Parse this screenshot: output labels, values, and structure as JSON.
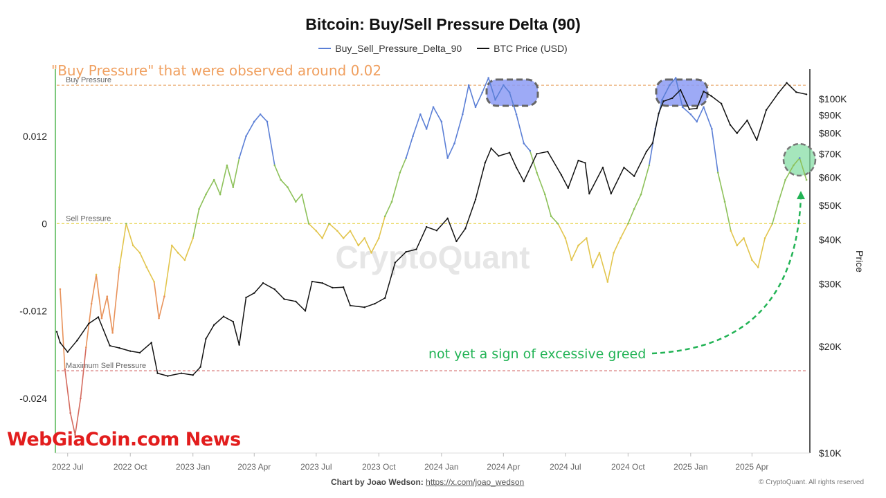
{
  "chart_data": {
    "type": "line",
    "title": "Bitcoin: Buy/Sell Pressure Delta (90)",
    "legend": [
      {
        "name": "Buy_Sell_Pressure_Delta_90",
        "color": "#5b7fd6"
      },
      {
        "name": "BTC Price (USD)",
        "color": "#111111"
      }
    ],
    "x_ticks": [
      "2022 Jul",
      "2022 Oct",
      "2023 Jan",
      "2023 Apr",
      "2023 Jul",
      "2023 Oct",
      "2024 Jan",
      "2024 Apr",
      "2024 Jul",
      "2024 Oct",
      "2025 Jan",
      "2025 Apr"
    ],
    "x_range": [
      "2022-06-15",
      "2025-06-25"
    ],
    "y_left": {
      "ticks": [
        "0.012",
        "0",
        "-0.012",
        "-0.024"
      ],
      "tick_values": [
        0.012,
        0,
        -0.012,
        -0.024
      ],
      "ylim": [
        -0.0315,
        0.0212
      ]
    },
    "y_right": {
      "label": "Price",
      "scale": "log",
      "ticks": [
        "$100K",
        "$90K",
        "$80K",
        "$70K",
        "$60K",
        "$50K",
        "$40K",
        "$30K",
        "$20K",
        "$10K"
      ],
      "tick_values": [
        100000,
        90000,
        80000,
        70000,
        60000,
        50000,
        40000,
        30000,
        20000,
        10000
      ]
    },
    "reference_lines": [
      {
        "label": "Buy Pressure",
        "value": 0.019,
        "color": "#e8a464"
      },
      {
        "label": "Sell Pressure",
        "value": 0.0,
        "color": "#e8d24a"
      },
      {
        "label": "Maximum Sell Pressure",
        "value": -0.0202,
        "color": "#d98080"
      }
    ],
    "series": [
      {
        "name": "Buy_Sell_Pressure_Delta_90",
        "axis": "left",
        "points": [
          [
            "2022-06-20",
            -0.009
          ],
          [
            "2022-06-27",
            -0.02
          ],
          [
            "2022-07-05",
            -0.026
          ],
          [
            "2022-07-12",
            -0.029
          ],
          [
            "2022-07-20",
            -0.024
          ],
          [
            "2022-07-28",
            -0.017
          ],
          [
            "2022-08-05",
            -0.011
          ],
          [
            "2022-08-12",
            -0.007
          ],
          [
            "2022-08-20",
            -0.013
          ],
          [
            "2022-08-28",
            -0.01
          ],
          [
            "2022-09-05",
            -0.015
          ],
          [
            "2022-09-15",
            -0.006
          ],
          [
            "2022-09-25",
            0.0
          ],
          [
            "2022-10-05",
            -0.003
          ],
          [
            "2022-10-15",
            -0.004
          ],
          [
            "2022-10-25",
            -0.006
          ],
          [
            "2022-11-05",
            -0.008
          ],
          [
            "2022-11-12",
            -0.013
          ],
          [
            "2022-11-20",
            -0.01
          ],
          [
            "2022-12-01",
            -0.003
          ],
          [
            "2022-12-10",
            -0.004
          ],
          [
            "2022-12-20",
            -0.005
          ],
          [
            "2023-01-01",
            -0.002
          ],
          [
            "2023-01-10",
            0.002
          ],
          [
            "2023-01-20",
            0.004
          ],
          [
            "2023-02-01",
            0.006
          ],
          [
            "2023-02-10",
            0.004
          ],
          [
            "2023-02-20",
            0.008
          ],
          [
            "2023-03-01",
            0.005
          ],
          [
            "2023-03-10",
            0.009
          ],
          [
            "2023-03-20",
            0.012
          ],
          [
            "2023-04-01",
            0.014
          ],
          [
            "2023-04-10",
            0.015
          ],
          [
            "2023-04-20",
            0.014
          ],
          [
            "2023-05-01",
            0.008
          ],
          [
            "2023-05-10",
            0.006
          ],
          [
            "2023-05-20",
            0.005
          ],
          [
            "2023-06-01",
            0.003
          ],
          [
            "2023-06-10",
            0.004
          ],
          [
            "2023-06-20",
            0.0
          ],
          [
            "2023-07-01",
            -0.001
          ],
          [
            "2023-07-10",
            -0.002
          ],
          [
            "2023-07-20",
            0.0
          ],
          [
            "2023-08-01",
            -0.001
          ],
          [
            "2023-08-10",
            -0.002
          ],
          [
            "2023-08-20",
            -0.001
          ],
          [
            "2023-09-01",
            -0.003
          ],
          [
            "2023-09-10",
            -0.002
          ],
          [
            "2023-09-20",
            -0.004
          ],
          [
            "2023-10-01",
            -0.002
          ],
          [
            "2023-10-10",
            0.001
          ],
          [
            "2023-10-20",
            0.003
          ],
          [
            "2023-11-01",
            0.007
          ],
          [
            "2023-11-10",
            0.009
          ],
          [
            "2023-11-20",
            0.012
          ],
          [
            "2023-12-01",
            0.015
          ],
          [
            "2023-12-10",
            0.013
          ],
          [
            "2023-12-20",
            0.016
          ],
          [
            "2024-01-01",
            0.014
          ],
          [
            "2024-01-10",
            0.009
          ],
          [
            "2024-01-20",
            0.011
          ],
          [
            "2024-02-01",
            0.015
          ],
          [
            "2024-02-10",
            0.019
          ],
          [
            "2024-02-20",
            0.016
          ],
          [
            "2024-03-01",
            0.018
          ],
          [
            "2024-03-10",
            0.02
          ],
          [
            "2024-03-20",
            0.017
          ],
          [
            "2024-04-01",
            0.019
          ],
          [
            "2024-04-10",
            0.018
          ],
          [
            "2024-04-20",
            0.015
          ],
          [
            "2024-05-01",
            0.011
          ],
          [
            "2024-05-10",
            0.01
          ],
          [
            "2024-05-20",
            0.007
          ],
          [
            "2024-06-01",
            0.004
          ],
          [
            "2024-06-10",
            0.001
          ],
          [
            "2024-06-20",
            0.0
          ],
          [
            "2024-07-01",
            -0.002
          ],
          [
            "2024-07-10",
            -0.005
          ],
          [
            "2024-07-20",
            -0.003
          ],
          [
            "2024-08-01",
            -0.002
          ],
          [
            "2024-08-10",
            -0.006
          ],
          [
            "2024-08-20",
            -0.004
          ],
          [
            "2024-09-01",
            -0.008
          ],
          [
            "2024-09-10",
            -0.004
          ],
          [
            "2024-09-20",
            -0.002
          ],
          [
            "2024-10-01",
            0.0
          ],
          [
            "2024-10-10",
            0.002
          ],
          [
            "2024-10-20",
            0.004
          ],
          [
            "2024-11-01",
            0.008
          ],
          [
            "2024-11-10",
            0.013
          ],
          [
            "2024-11-20",
            0.017
          ],
          [
            "2024-12-01",
            0.019
          ],
          [
            "2024-12-10",
            0.02
          ],
          [
            "2024-12-20",
            0.016
          ],
          [
            "2025-01-01",
            0.015
          ],
          [
            "2025-01-10",
            0.014
          ],
          [
            "2025-01-20",
            0.016
          ],
          [
            "2025-02-01",
            0.013
          ],
          [
            "2025-02-10",
            0.007
          ],
          [
            "2025-02-20",
            0.003
          ],
          [
            "2025-03-01",
            -0.001
          ],
          [
            "2025-03-10",
            -0.003
          ],
          [
            "2025-03-20",
            -0.002
          ],
          [
            "2025-04-01",
            -0.005
          ],
          [
            "2025-04-10",
            -0.006
          ],
          [
            "2025-04-20",
            -0.002
          ],
          [
            "2025-05-01",
            0.0
          ],
          [
            "2025-05-10",
            0.003
          ],
          [
            "2025-05-20",
            0.006
          ],
          [
            "2025-06-01",
            0.008
          ],
          [
            "2025-06-10",
            0.009
          ],
          [
            "2025-06-20",
            0.006
          ]
        ]
      },
      {
        "name": "BTC Price (USD)",
        "axis": "right",
        "points": [
          [
            "2022-06-15",
            22000
          ],
          [
            "2022-06-20",
            20500
          ],
          [
            "2022-07-01",
            19300
          ],
          [
            "2022-07-15",
            20800
          ],
          [
            "2022-08-01",
            23200
          ],
          [
            "2022-08-15",
            24200
          ],
          [
            "2022-09-01",
            20100
          ],
          [
            "2022-09-15",
            19800
          ],
          [
            "2022-10-01",
            19400
          ],
          [
            "2022-10-15",
            19200
          ],
          [
            "2022-11-01",
            20500
          ],
          [
            "2022-11-10",
            16800
          ],
          [
            "2022-11-25",
            16500
          ],
          [
            "2022-12-15",
            16800
          ],
          [
            "2023-01-01",
            16600
          ],
          [
            "2023-01-12",
            17500
          ],
          [
            "2023-01-20",
            21000
          ],
          [
            "2023-02-01",
            23000
          ],
          [
            "2023-02-15",
            24300
          ],
          [
            "2023-03-01",
            23500
          ],
          [
            "2023-03-10",
            20200
          ],
          [
            "2023-03-20",
            27500
          ],
          [
            "2023-04-01",
            28300
          ],
          [
            "2023-04-14",
            30200
          ],
          [
            "2023-05-01",
            29000
          ],
          [
            "2023-05-15",
            27200
          ],
          [
            "2023-06-01",
            26800
          ],
          [
            "2023-06-15",
            25200
          ],
          [
            "2023-06-25",
            30500
          ],
          [
            "2023-07-10",
            30200
          ],
          [
            "2023-07-25",
            29300
          ],
          [
            "2023-08-10",
            29400
          ],
          [
            "2023-08-20",
            26100
          ],
          [
            "2023-09-10",
            25800
          ],
          [
            "2023-09-25",
            26400
          ],
          [
            "2023-10-10",
            27400
          ],
          [
            "2023-10-25",
            34500
          ],
          [
            "2023-11-10",
            37000
          ],
          [
            "2023-11-25",
            37600
          ],
          [
            "2023-12-10",
            43500
          ],
          [
            "2023-12-25",
            42500
          ],
          [
            "2024-01-10",
            46000
          ],
          [
            "2024-01-23",
            39600
          ],
          [
            "2024-02-05",
            43000
          ],
          [
            "2024-02-20",
            52000
          ],
          [
            "2024-03-05",
            66000
          ],
          [
            "2024-03-14",
            72500
          ],
          [
            "2024-03-25",
            69000
          ],
          [
            "2024-04-10",
            70500
          ],
          [
            "2024-04-20",
            64000
          ],
          [
            "2024-05-01",
            58500
          ],
          [
            "2024-05-20",
            70000
          ],
          [
            "2024-06-05",
            71000
          ],
          [
            "2024-06-25",
            61000
          ],
          [
            "2024-07-05",
            56000
          ],
          [
            "2024-07-20",
            67000
          ],
          [
            "2024-07-30",
            66000
          ],
          [
            "2024-08-05",
            54000
          ],
          [
            "2024-08-25",
            64000
          ],
          [
            "2024-09-06",
            54000
          ],
          [
            "2024-09-25",
            64000
          ],
          [
            "2024-10-10",
            60500
          ],
          [
            "2024-10-28",
            71000
          ],
          [
            "2024-11-06",
            75000
          ],
          [
            "2024-11-15",
            91000
          ],
          [
            "2024-11-22",
            98500
          ],
          [
            "2024-12-05",
            100500
          ],
          [
            "2024-12-17",
            106000
          ],
          [
            "2024-12-30",
            93500
          ],
          [
            "2025-01-10",
            94000
          ],
          [
            "2025-01-20",
            105000
          ],
          [
            "2025-01-31",
            102000
          ],
          [
            "2025-02-15",
            97000
          ],
          [
            "2025-02-28",
            84500
          ],
          [
            "2025-03-10",
            80000
          ],
          [
            "2025-03-25",
            87000
          ],
          [
            "2025-04-08",
            76500
          ],
          [
            "2025-04-22",
            93000
          ],
          [
            "2025-05-10",
            104000
          ],
          [
            "2025-05-22",
            111000
          ],
          [
            "2025-06-05",
            104500
          ],
          [
            "2025-06-20",
            103000
          ]
        ]
      }
    ],
    "annotations": [
      {
        "text": "\"Buy Pressure\" that were observed around 0.02",
        "color": "#f0a060"
      },
      {
        "text": "not yet a sign of excessive greed",
        "color": "#22b355"
      }
    ],
    "watermark": "CryptoQuant"
  },
  "footer": {
    "prefix": "Chart by Joao Wedson:",
    "link": "https://x.com/joao_wedson",
    "copyright": "© CryptoQuant. All rights reserved"
  },
  "brand": "WebGiaCoin.com News"
}
